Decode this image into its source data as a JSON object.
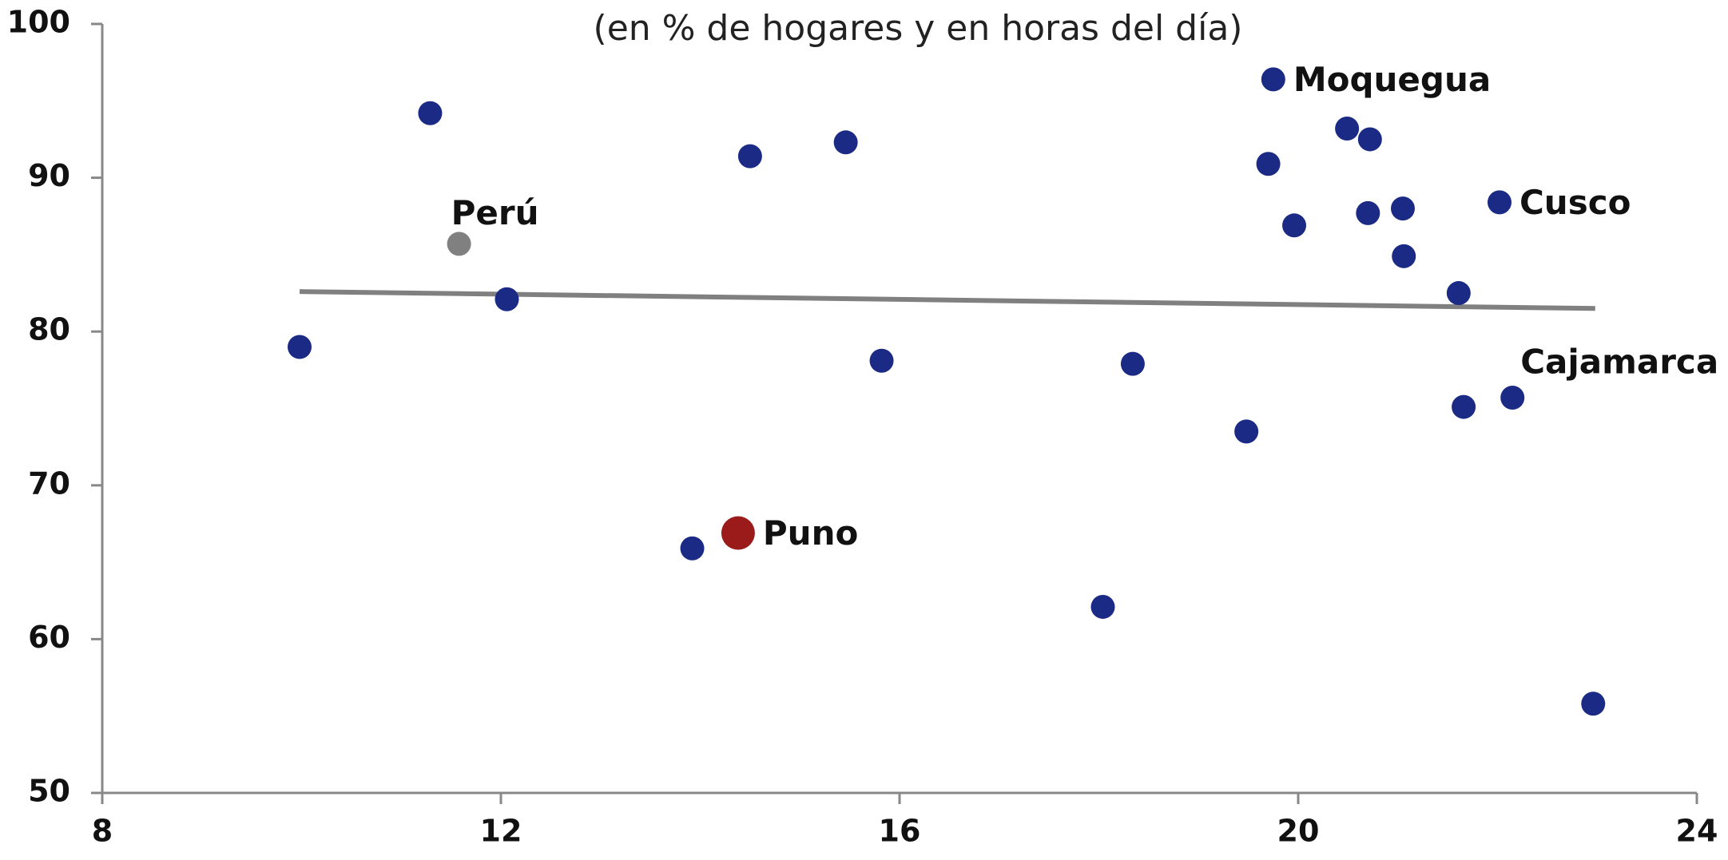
{
  "chart_data": {
    "type": "scatter",
    "subtitle": "(en % de hogares y en horas del día)",
    "x": [
      19.75,
      11.29,
      14.5,
      15.46,
      11.58,
      12.06,
      9.98,
      15.82,
      18.34,
      19.7,
      19.96,
      20.49,
      20.72,
      20.7,
      21.05,
      21.06,
      21.61,
      22.02,
      22.15,
      21.66,
      19.48,
      14.38,
      13.92,
      18.04,
      22.96
    ],
    "y": [
      96.4,
      94.2,
      91.4,
      92.3,
      85.7,
      82.1,
      79.0,
      78.1,
      77.9,
      90.9,
      86.9,
      93.2,
      92.5,
      87.7,
      88.0,
      84.9,
      82.5,
      88.4,
      75.7,
      75.1,
      73.5,
      66.9,
      65.9,
      62.1,
      55.8
    ],
    "point_labels": [
      "Moquegua",
      null,
      null,
      null,
      "Perú",
      null,
      null,
      null,
      null,
      null,
      null,
      null,
      null,
      null,
      null,
      null,
      null,
      "Cusco",
      "Cajamarca",
      null,
      null,
      "Puno",
      null,
      null,
      null
    ],
    "colors": [
      "#1b2a84",
      "#1b2a84",
      "#1b2a84",
      "#1b2a84",
      "#808080",
      "#1b2a84",
      "#1b2a84",
      "#1b2a84",
      "#1b2a84",
      "#1b2a84",
      "#1b2a84",
      "#1b2a84",
      "#1b2a84",
      "#1b2a84",
      "#1b2a84",
      "#1b2a84",
      "#1b2a84",
      "#1b2a84",
      "#1b2a84",
      "#1b2a84",
      "#1b2a84",
      "#9b1b1b",
      "#1b2a84",
      "#1b2a84",
      "#1b2a84"
    ],
    "trendline": {
      "x": [
        9.98,
        22.98
      ],
      "y": [
        82.6,
        81.5
      ],
      "color": "#808080"
    },
    "xlim": [
      8,
      24
    ],
    "xticks": [
      8,
      12,
      16,
      20,
      24
    ],
    "ylim": [
      50,
      100
    ],
    "yticks": [
      50,
      60,
      70,
      80,
      90,
      100
    ]
  }
}
